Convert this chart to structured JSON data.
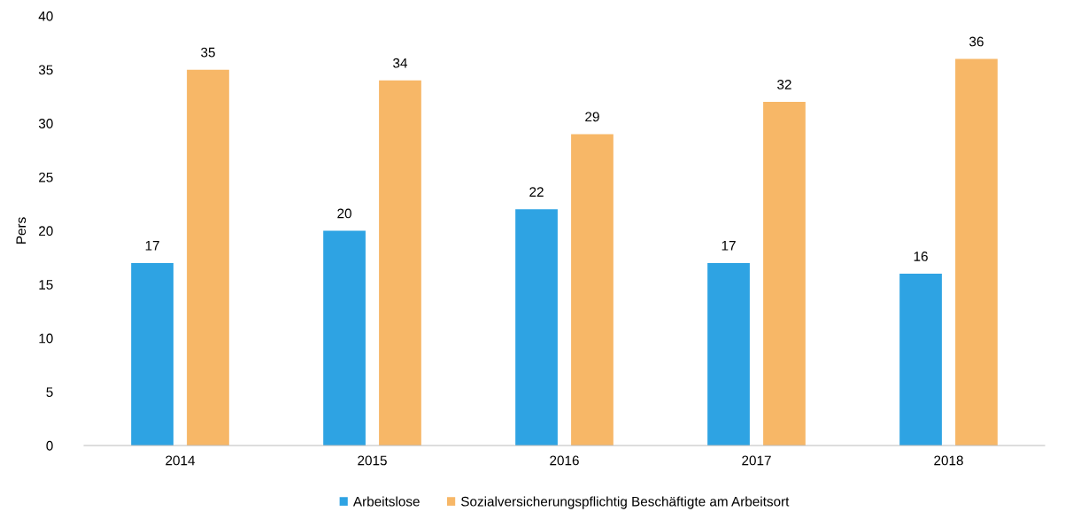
{
  "chart_data": {
    "type": "bar",
    "ylabel": "Pers",
    "categories": [
      "2014",
      "2015",
      "2016",
      "2017",
      "2018"
    ],
    "series": [
      {
        "name": "Arbeitslose",
        "color": "#2ea3e3",
        "values": [
          17,
          20,
          22,
          17,
          16
        ]
      },
      {
        "name": "Sozialversicherungspflichtig Beschäftigte am Arbeitsort",
        "color": "#f7b767",
        "values": [
          35,
          34,
          29,
          32,
          36
        ]
      }
    ],
    "ylim": [
      0,
      40
    ],
    "yticks": [
      0,
      5,
      10,
      15,
      20,
      25,
      30,
      35,
      40
    ],
    "data_labels": true,
    "grid": false,
    "legend": "bottom"
  }
}
